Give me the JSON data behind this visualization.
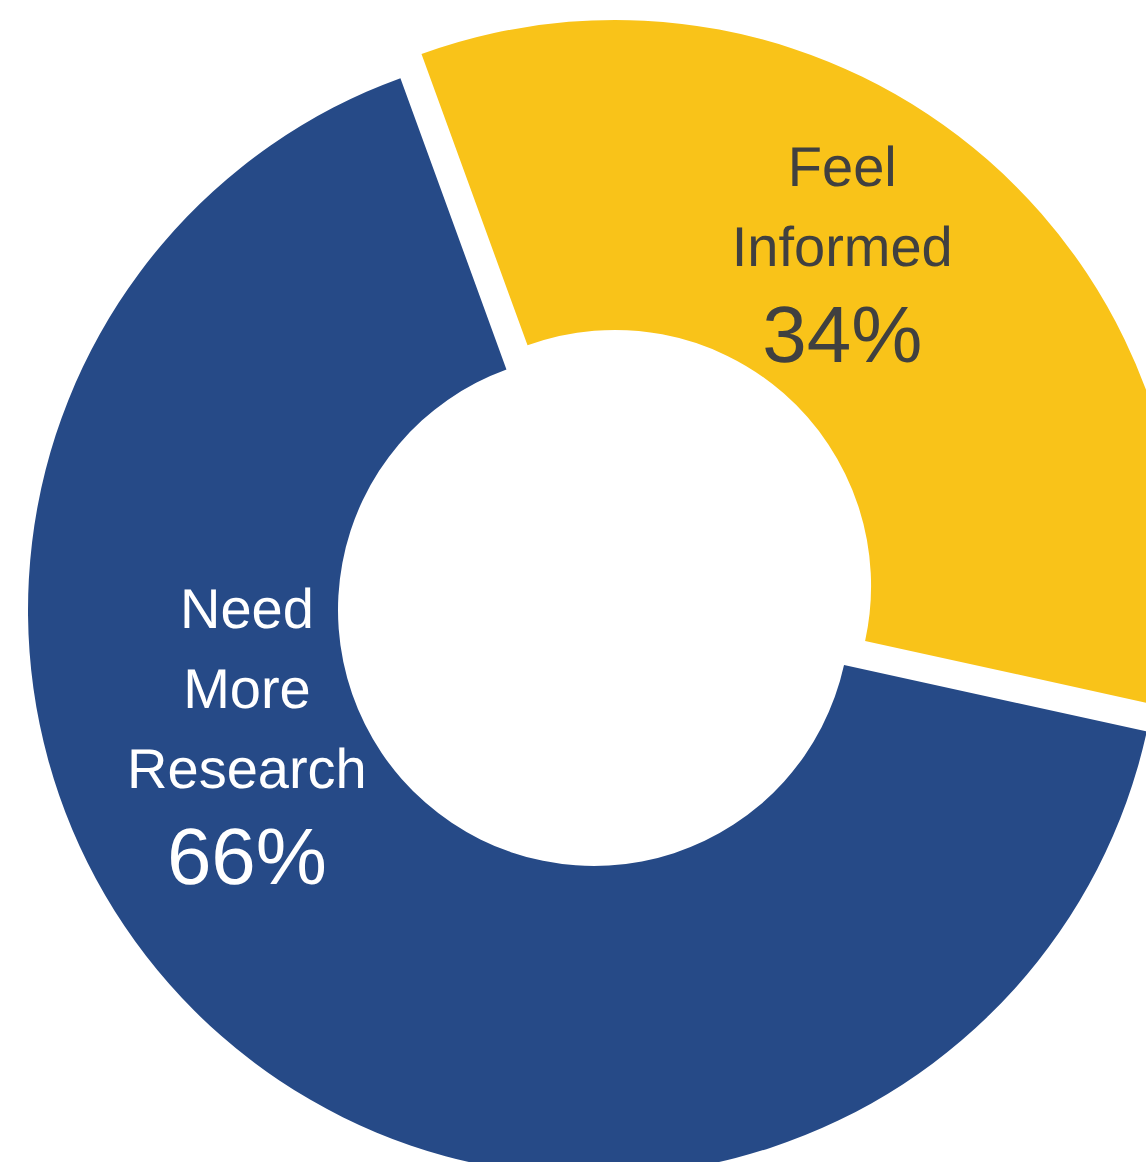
{
  "chart_data": {
    "type": "donut",
    "categories": [
      "Feel Informed",
      "Need More Research"
    ],
    "values": [
      34,
      66
    ],
    "colors": [
      "#f9c319",
      "#264a87"
    ],
    "value_labels": [
      "34%",
      "66%"
    ],
    "legend": false
  }
}
